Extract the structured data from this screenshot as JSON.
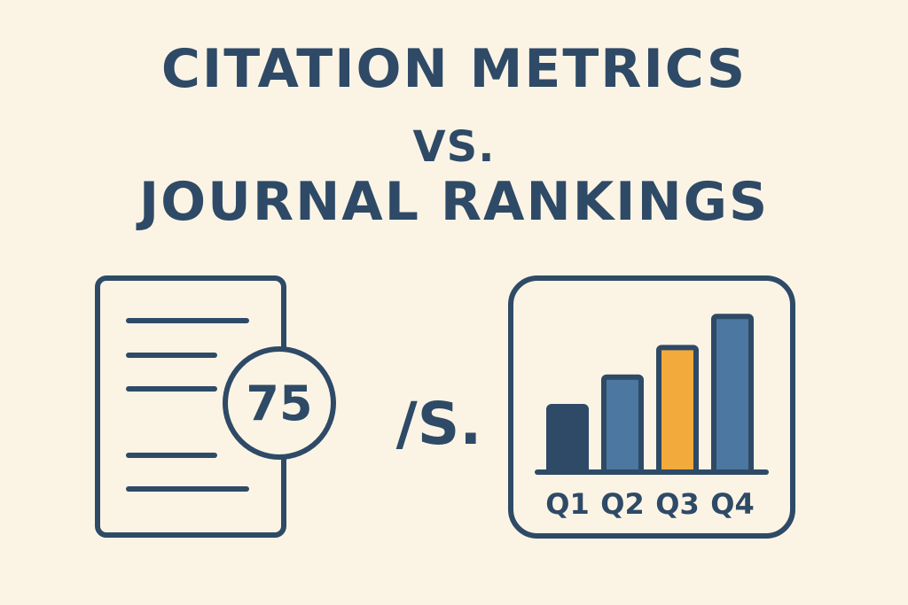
{
  "title": {
    "line1": "CITATION METRICS",
    "line2": "VS.",
    "line3": "JOURNAL RANKINGS"
  },
  "document_icon": {
    "score": "75"
  },
  "separator": "/S.",
  "ranking_chart": {
    "bars": [
      {
        "label": "Q1",
        "level": 0.4,
        "color": "#2E4A66"
      },
      {
        "label": "Q2",
        "level": 0.58,
        "color": "#4B77A1"
      },
      {
        "label": "Q3",
        "level": 0.76,
        "color": "#F2AA3C"
      },
      {
        "label": "Q4",
        "level": 0.95,
        "color": "#4B77A1"
      }
    ],
    "outline_color": "#2E4A66"
  },
  "colors": {
    "background": "#FBF4E5",
    "ink": "#2E4A66"
  }
}
